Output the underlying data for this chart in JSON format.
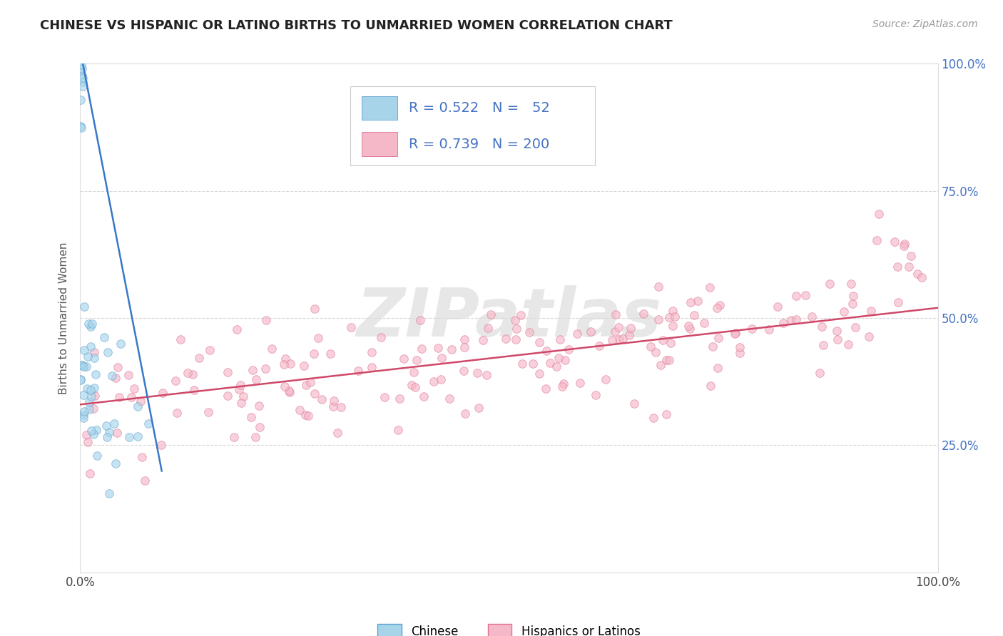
{
  "title": "CHINESE VS HISPANIC OR LATINO BIRTHS TO UNMARRIED WOMEN CORRELATION CHART",
  "source": "Source: ZipAtlas.com",
  "ylabel": "Births to Unmarried Women",
  "xlim": [
    0,
    100
  ],
  "ylim": [
    0,
    100
  ],
  "chinese_fill": "#A8D4EA",
  "chinese_edge": "#5B9FD0",
  "hispanic_fill": "#F4B8C8",
  "hispanic_edge": "#E07090",
  "chinese_line_color": "#3878C8",
  "hispanic_line_color": "#D04868",
  "legend_text_color": "#4472C4",
  "right_axis_color": "#4472C4",
  "grid_color": "#CCCCCC",
  "title_color": "#222222",
  "source_color": "#999999",
  "watermark_color": "#DDDDDD",
  "legend_label_chinese": "Chinese",
  "legend_label_hispanic": "Hispanics or Latinos",
  "R_chinese": "0.522",
  "N_chinese": "52",
  "R_hispanic": "0.739",
  "N_hispanic": "200"
}
